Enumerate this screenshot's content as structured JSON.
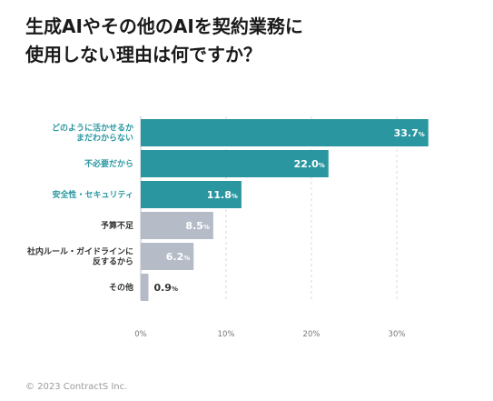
{
  "title_line1": "生成AIやその他のAIを契約業務に",
  "title_line2": "使用しない理由は何ですか？",
  "footer": "© 2023 ContractS Inc.",
  "colors": {
    "teal": "#2a97a0",
    "gray": "#b5bcc8",
    "teal_text": "#2a97a0",
    "gray_text": "#333333"
  },
  "chart_data": {
    "type": "bar",
    "orientation": "horizontal",
    "categories": [
      [
        "どのように活かせるか",
        "まだわからない"
      ],
      [
        "不必要だから"
      ],
      [
        "安全性・セキュリティ"
      ],
      [
        "予算不足"
      ],
      [
        "社内ルール・ガイドラインに",
        "反するから"
      ],
      [
        "その他"
      ]
    ],
    "values": [
      33.7,
      22.0,
      11.8,
      8.5,
      6.2,
      0.9
    ],
    "value_labels": [
      "33.7",
      "22.0",
      "11.8",
      "8.5",
      "6.2",
      "0.9"
    ],
    "unit": "%",
    "bar_colors": [
      "teal",
      "teal",
      "teal",
      "gray",
      "gray",
      "gray"
    ],
    "xlim": [
      0,
      34.5
    ],
    "xticks": [
      0,
      10,
      20,
      30
    ],
    "xtick_labels": [
      "0",
      "10",
      "20",
      "30"
    ],
    "grid": "vertical dashed"
  }
}
